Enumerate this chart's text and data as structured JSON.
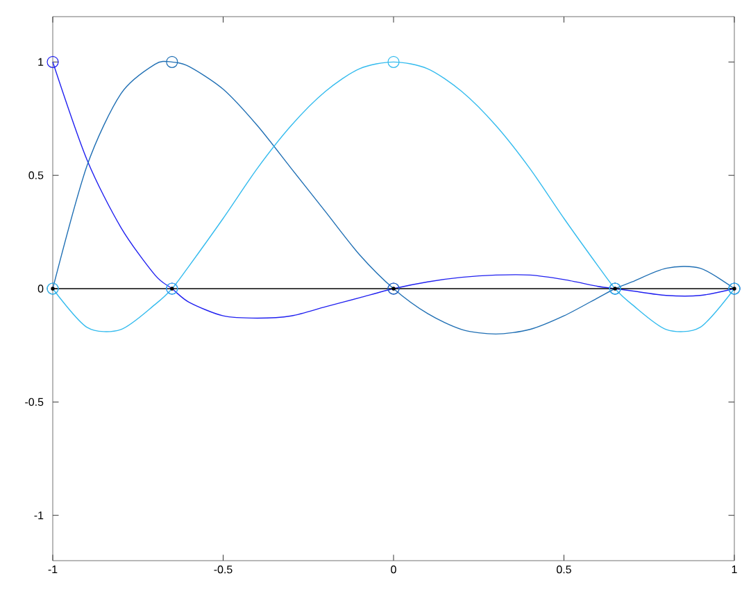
{
  "chart_data": {
    "type": "line",
    "xlim": [
      -1,
      1
    ],
    "ylim": [
      -1.2,
      1.2
    ],
    "xticks": [
      -1,
      -0.5,
      0,
      0.5,
      1
    ],
    "yticks": [
      -1,
      -0.5,
      0,
      0.5,
      1
    ],
    "grid": false,
    "marker": "none",
    "line_style": "solid",
    "series": [
      {
        "color": "#2020f0",
        "x": [
          -1,
          -0.9,
          -0.8,
          -0.7,
          -0.65,
          -0.6,
          -0.5,
          -0.4,
          -0.3,
          -0.2,
          -0.1,
          0,
          0.1,
          0.2,
          0.3,
          0.4,
          0.5,
          0.6,
          0.65,
          0.7,
          0.8,
          0.9,
          1
        ],
        "values": [
          1,
          0.57,
          0.27,
          0.06,
          0,
          -0.06,
          -0.12,
          -0.13,
          -0.12,
          -0.08,
          -0.04,
          0,
          0.03,
          0.05,
          0.06,
          0.06,
          0.04,
          0.01,
          0,
          -0.01,
          -0.03,
          -0.03,
          0
        ]
      },
      {
        "color": "#1f6fb4",
        "x": [
          -1,
          -0.9,
          -0.8,
          -0.7,
          -0.65,
          -0.6,
          -0.5,
          -0.4,
          -0.3,
          -0.2,
          -0.1,
          0,
          0.1,
          0.2,
          0.3,
          0.4,
          0.5,
          0.6,
          0.65,
          0.7,
          0.8,
          0.9,
          1
        ],
        "values": [
          0,
          0.54,
          0.86,
          0.99,
          1,
          0.98,
          0.88,
          0.72,
          0.53,
          0.34,
          0.15,
          0,
          -0.11,
          -0.18,
          -0.2,
          -0.18,
          -0.12,
          -0.04,
          0,
          0.03,
          0.09,
          0.09,
          0
        ]
      },
      {
        "color": "#33bbee",
        "x": [
          -1,
          -0.9,
          -0.8,
          -0.7,
          -0.65,
          -0.6,
          -0.5,
          -0.4,
          -0.3,
          -0.2,
          -0.1,
          0,
          0.1,
          0.2,
          0.3,
          0.4,
          0.5,
          0.6,
          0.65,
          0.7,
          0.8,
          0.9,
          1
        ],
        "values": [
          0,
          -0.17,
          -0.18,
          -0.07,
          0,
          0.1,
          0.31,
          0.53,
          0.72,
          0.87,
          0.97,
          1,
          0.97,
          0.87,
          0.72,
          0.53,
          0.31,
          0.1,
          0,
          -0.07,
          -0.18,
          -0.17,
          0
        ]
      },
      {
        "color": "#000000",
        "marker": "circle",
        "x": [
          -1,
          -0.65,
          0,
          0.65,
          1
        ],
        "values": [
          0,
          0,
          0,
          0,
          0
        ]
      },
      {
        "type": "scatter",
        "color": "#2020f0",
        "marker": "circle",
        "x": [
          -1,
          -0.65,
          0,
          0.65,
          1
        ],
        "values": [
          1,
          0,
          0,
          0,
          0
        ]
      },
      {
        "type": "scatter",
        "color": "#1f6fb4",
        "marker": "circle",
        "x": [
          -1,
          -0.65,
          0,
          0.65,
          1
        ],
        "values": [
          0,
          1,
          0,
          0,
          0
        ]
      },
      {
        "type": "scatter",
        "color": "#33bbee",
        "marker": "circle",
        "x": [
          -1,
          -0.65,
          0,
          0.65,
          1
        ],
        "values": [
          0,
          0,
          1,
          0,
          0
        ]
      }
    ]
  }
}
